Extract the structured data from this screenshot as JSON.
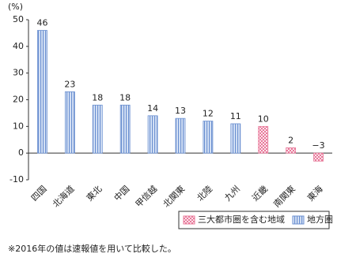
{
  "chart_data": {
    "type": "bar",
    "y_label": "(%)",
    "categories": [
      "四国",
      "北海道",
      "東北",
      "中国",
      "甲信越",
      "北関東",
      "北陸",
      "九州",
      "近畿",
      "南関東",
      "東海"
    ],
    "series": [
      {
        "name": "三大都市圏を含む地域",
        "color": "#e87a9a",
        "pattern": "check",
        "values": [
          null,
          null,
          null,
          null,
          null,
          null,
          null,
          null,
          10,
          2,
          -3
        ],
        "value_labels": [
          null,
          null,
          null,
          null,
          null,
          null,
          null,
          null,
          "10",
          "2",
          "−3"
        ]
      },
      {
        "name": "地方圏",
        "color": "#6a8fd0",
        "pattern": "stripe",
        "values": [
          46,
          23,
          18,
          18,
          14,
          13,
          12,
          11,
          null,
          null,
          null
        ],
        "value_labels": [
          "46",
          "23",
          "18",
          "18",
          "14",
          "13",
          "12",
          "11",
          null,
          null,
          null
        ]
      }
    ],
    "ylim": [
      -10,
      50
    ],
    "yticks": [
      -10,
      0,
      10,
      20,
      30,
      40,
      50
    ],
    "grid": false,
    "legend": "bottom-right",
    "footnote": "※2016年の値は速報値を用いて比較した。"
  }
}
